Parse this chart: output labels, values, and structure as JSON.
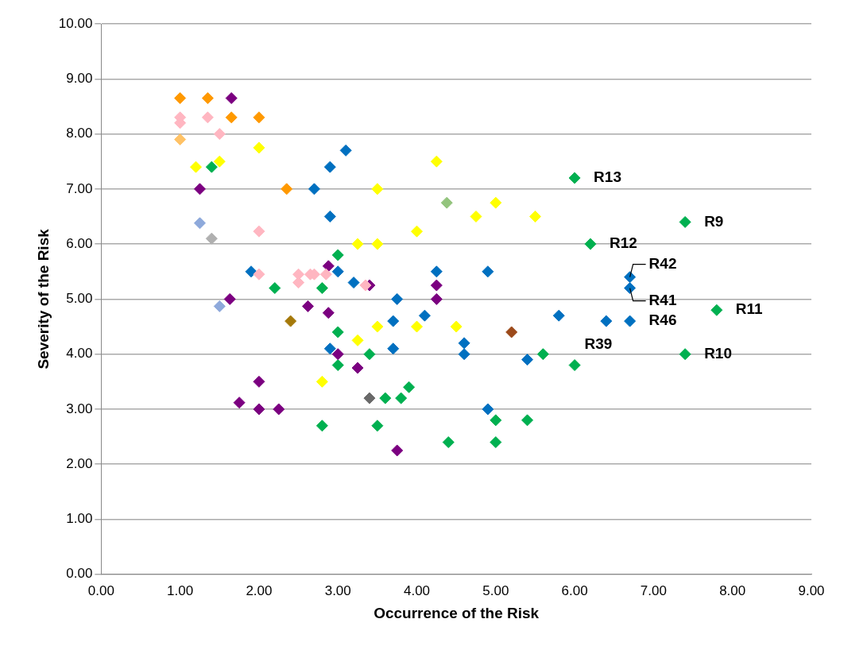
{
  "chart_data": {
    "type": "scatter",
    "xlabel": "Occurrence of the Risk",
    "ylabel": "Severity of the Risk",
    "marker": "diamond",
    "grid": "y",
    "legend": false,
    "xlim": [
      0,
      9
    ],
    "ylim": [
      0,
      10
    ],
    "xticks": [
      {
        "value": 0,
        "label": "0.00"
      },
      {
        "value": 1,
        "label": "1.00"
      },
      {
        "value": 2,
        "label": "2.00"
      },
      {
        "value": 3,
        "label": "3.00"
      },
      {
        "value": 4,
        "label": "4.00"
      },
      {
        "value": 5,
        "label": "5.00"
      },
      {
        "value": 6,
        "label": "6.00"
      },
      {
        "value": 7,
        "label": "7.00"
      },
      {
        "value": 8,
        "label": "8.00"
      },
      {
        "value": 9,
        "label": "9.00"
      }
    ],
    "yticks": [
      {
        "value": 0,
        "label": "0.00"
      },
      {
        "value": 1,
        "label": "1.00"
      },
      {
        "value": 2,
        "label": "2.00"
      },
      {
        "value": 3,
        "label": "3.00"
      },
      {
        "value": 4,
        "label": "4.00"
      },
      {
        "value": 5,
        "label": "5.00"
      },
      {
        "value": 6,
        "label": "6.00"
      },
      {
        "value": 7,
        "label": "7.00"
      },
      {
        "value": 8,
        "label": "8.00"
      },
      {
        "value": 9,
        "label": "9.00"
      },
      {
        "value": 10,
        "label": "10.00"
      }
    ],
    "series": [
      {
        "color": "#ff9900",
        "x": [
          1.0,
          1.35,
          1.65,
          2.0,
          2.35
        ],
        "values": [
          8.65,
          8.65,
          8.3,
          8.3,
          7.0
        ]
      },
      {
        "color": "#ffc266",
        "x": [
          1.0
        ],
        "values": [
          7.9
        ]
      },
      {
        "color": "#ffb6c1",
        "x": [
          1.0,
          1.0,
          1.35,
          1.5,
          2.0,
          2.0,
          2.5,
          2.5,
          2.65,
          2.7,
          2.85,
          3.35
        ],
        "values": [
          8.3,
          8.2,
          8.3,
          8.0,
          6.23,
          5.45,
          5.45,
          5.3,
          5.45,
          5.45,
          5.45,
          5.25
        ]
      },
      {
        "color": "#7b0080",
        "x": [
          1.65,
          1.25,
          1.63,
          2.88,
          2.62,
          2.88,
          3.0,
          3.25,
          2.0,
          1.75,
          2.0,
          2.25,
          3.4,
          4.25,
          4.25,
          3.75
        ],
        "values": [
          8.65,
          7.0,
          5.0,
          5.6,
          4.87,
          4.75,
          4.0,
          3.75,
          3.5,
          3.12,
          3.0,
          3.0,
          5.25,
          5.25,
          5.0,
          2.25
        ]
      },
      {
        "color": "#ffff00",
        "x": [
          1.2,
          1.5,
          2.0,
          4.25,
          3.5,
          3.25,
          3.5,
          4.0,
          4.75,
          5.0,
          5.5,
          3.25,
          3.5,
          4.0,
          4.5,
          2.8
        ],
        "values": [
          7.4,
          7.5,
          7.75,
          7.5,
          7.0,
          6.0,
          6.0,
          6.23,
          6.5,
          6.75,
          6.5,
          4.25,
          4.5,
          4.5,
          4.5,
          3.5
        ]
      },
      {
        "color": "#00b050",
        "x": [
          1.4,
          3.0,
          2.2,
          2.8,
          3.0,
          3.0,
          3.4,
          3.6,
          3.8,
          3.9,
          2.8,
          3.5,
          4.4,
          5.0,
          5.0,
          5.4,
          5.6,
          6.0,
          6.0,
          6.2,
          7.4,
          7.8,
          7.4
        ],
        "values": [
          7.4,
          5.8,
          5.2,
          5.2,
          4.4,
          3.8,
          4.0,
          3.2,
          3.2,
          3.4,
          2.7,
          2.7,
          2.4,
          2.4,
          2.8,
          2.8,
          4.0,
          3.8,
          7.2,
          6.0,
          6.4,
          4.8,
          4.0
        ]
      },
      {
        "color": "#0070c0",
        "x": [
          3.1,
          2.9,
          2.7,
          2.9,
          1.9,
          3.0,
          3.2,
          3.75,
          4.25,
          4.9,
          4.1,
          3.7,
          2.9,
          3.7,
          4.6,
          4.6,
          5.4,
          4.9,
          5.8,
          6.7,
          6.7,
          6.4,
          6.7
        ],
        "values": [
          7.7,
          7.4,
          7.0,
          6.5,
          5.5,
          5.5,
          5.3,
          5.0,
          5.5,
          5.5,
          4.7,
          4.6,
          4.1,
          4.1,
          4.2,
          4.0,
          3.9,
          3.0,
          4.7,
          5.4,
          5.2,
          4.6,
          4.6
        ]
      },
      {
        "color": "#8ea9db",
        "x": [
          1.25,
          1.5
        ],
        "values": [
          6.38,
          4.87
        ]
      },
      {
        "color": "#b0b0b0",
        "x": [
          1.4
        ],
        "values": [
          6.1
        ]
      },
      {
        "color": "#696969",
        "x": [
          3.4
        ],
        "values": [
          3.2
        ]
      },
      {
        "color": "#93c47d",
        "x": [
          4.38
        ],
        "values": [
          6.75
        ]
      },
      {
        "color": "#a5790a",
        "x": [
          2.4
        ],
        "values": [
          4.6
        ]
      },
      {
        "color": "#9c4a1a",
        "x": [
          5.2
        ],
        "values": [
          4.4
        ]
      }
    ],
    "annotations": [
      {
        "text": "R13",
        "x": 6.0,
        "y": 7.2
      },
      {
        "text": "R9",
        "x": 7.4,
        "y": 6.4
      },
      {
        "text": "R12",
        "x": 6.2,
        "y": 6.0
      },
      {
        "text": "R42",
        "x": 6.7,
        "y": 5.4
      },
      {
        "text": "R41",
        "x": 6.7,
        "y": 5.2
      },
      {
        "text": "R11",
        "x": 7.8,
        "y": 4.8
      },
      {
        "text": "R46",
        "x": 6.7,
        "y": 4.6
      },
      {
        "text": "R39",
        "x": 6.4,
        "y": 4.6
      },
      {
        "text": "R10",
        "x": 7.4,
        "y": 4.0
      }
    ]
  }
}
